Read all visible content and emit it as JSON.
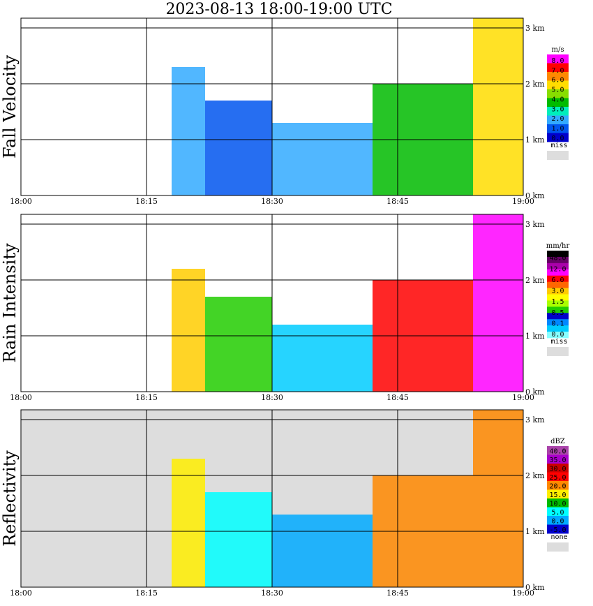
{
  "title": "2023-08-13   18:00-19:00 UTC",
  "chart_data": [
    {
      "type": "heatmap",
      "ylabel": "Fall Velocity",
      "x_tick_labels": [
        "18:00",
        "18:15",
        "18:30",
        "18:45",
        "19:00"
      ],
      "y_tick_labels": [
        "0 km",
        "1 km",
        "2 km",
        "3 km"
      ],
      "xlim": [
        "18:00",
        "19:00"
      ],
      "ylim_km": [
        0,
        3.2
      ],
      "grid": true,
      "colorbar": {
        "unit": "m/s",
        "labels": [
          "8.0",
          "7.0",
          "6.0",
          "5.0",
          "4.0",
          "3.0",
          "2.0",
          "1.0",
          "0.0"
        ],
        "colors": [
          "#ff00ff",
          "#ff0000",
          "#ff8800",
          "#ffdd00",
          "#88dd00",
          "#00bb00",
          "#00eebb",
          "#33aaff",
          "#0055ee",
          "#0000cc"
        ],
        "missing_label": "miss",
        "missing_color": "#dddddd"
      },
      "echoes": [
        {
          "t0": "18:18",
          "t1": "18:22",
          "top_km": 2.3,
          "color": "#33aaff"
        },
        {
          "t0": "18:22",
          "t1": "18:30",
          "top_km": 1.7,
          "color": "#0055ee"
        },
        {
          "t0": "18:30",
          "t1": "18:42",
          "top_km": 1.3,
          "color": "#33aaff"
        },
        {
          "t0": "18:42",
          "t1": "18:54",
          "top_km": 2.0,
          "color": "#00bb00"
        },
        {
          "t0": "18:54",
          "t1": "19:00",
          "top_km": 3.2,
          "color": "#ffdd00"
        }
      ]
    },
    {
      "type": "heatmap",
      "ylabel": "Rain Intensity",
      "x_tick_labels": [
        "18:00",
        "18:15",
        "18:30",
        "18:45",
        "19:00"
      ],
      "y_tick_labels": [
        "0 km",
        "1 km",
        "2 km",
        "3 km"
      ],
      "xlim": [
        "18:00",
        "19:00"
      ],
      "ylim_km": [
        0,
        3.2
      ],
      "grid": true,
      "colorbar": {
        "unit": "mm/hr",
        "labels": [
          "48.0",
          "12.0",
          "6.0",
          "3.0",
          "1.5",
          "0.5",
          "0.1",
          "0.0"
        ],
        "colors": [
          "#000000",
          "#660066",
          "#aa00aa",
          "#ff00ff",
          "#ff0000",
          "#ff6600",
          "#ffcc00",
          "#ffff00",
          "#aaff00",
          "#22cc00",
          "#0000cc",
          "#0088ff",
          "#00ccff",
          "#88ffff"
        ],
        "missing_label": "miss",
        "missing_color": "#dddddd"
      },
      "echoes": [
        {
          "t0": "18:18",
          "t1": "18:22",
          "top_km": 2.2,
          "color": "#ffcc00"
        },
        {
          "t0": "18:22",
          "t1": "18:30",
          "top_km": 1.7,
          "color": "#22cc00"
        },
        {
          "t0": "18:30",
          "t1": "18:42",
          "top_km": 1.2,
          "color": "#00ccff"
        },
        {
          "t0": "18:42",
          "t1": "18:54",
          "top_km": 2.0,
          "color": "#ff0000"
        },
        {
          "t0": "18:54",
          "t1": "19:00",
          "top_km": 3.2,
          "color": "#ff00ff"
        }
      ]
    },
    {
      "type": "heatmap",
      "ylabel": "Reflectivity",
      "x_tick_labels": [
        "18:00",
        "18:15",
        "18:30",
        "18:45",
        "19:00"
      ],
      "y_tick_labels": [
        "0 km",
        "1 km",
        "2 km",
        "3 km"
      ],
      "xlim": [
        "18:00",
        "19:00"
      ],
      "ylim_km": [
        0,
        3.2
      ],
      "grid": true,
      "background": "missing",
      "colorbar": {
        "unit": "dBZ",
        "labels": [
          "40.0",
          "35.0",
          "30.0",
          "25.0",
          "20.0",
          "15.0",
          "10.0",
          "5.0",
          "0.0",
          "-5.0"
        ],
        "colors": [
          "#aa44aa",
          "#aa00cc",
          "#cc0000",
          "#ff0000",
          "#ff8800",
          "#ffee00",
          "#00bb00",
          "#00ffff",
          "#00aaff",
          "#0000cc"
        ],
        "missing_label": "none",
        "missing_color": "#dddddd"
      },
      "echoes": [
        {
          "t0": "18:18",
          "t1": "18:22",
          "top_km": 2.3,
          "color": "#ffee00"
        },
        {
          "t0": "18:22",
          "t1": "18:30",
          "top_km": 1.7,
          "color": "#00ffff"
        },
        {
          "t0": "18:30",
          "t1": "18:42",
          "top_km": 1.3,
          "color": "#00aaff"
        },
        {
          "t0": "18:42",
          "t1": "18:54",
          "top_km": 2.0,
          "color": "#ff8800"
        },
        {
          "t0": "18:54",
          "t1": "19:00",
          "top_km": 3.2,
          "color": "#ff8800"
        }
      ]
    }
  ]
}
